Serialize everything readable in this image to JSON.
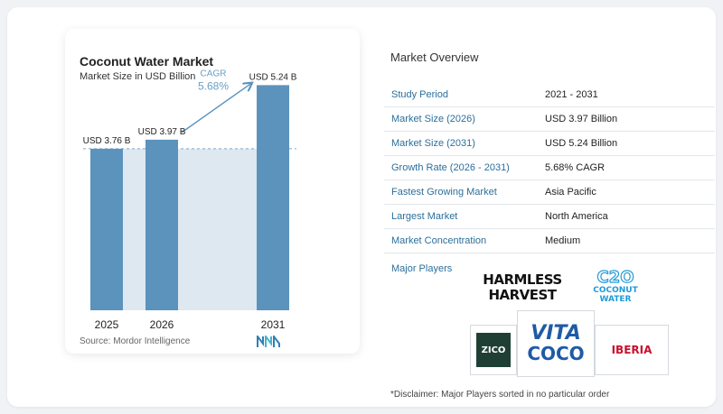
{
  "chart_data": {
    "type": "bar",
    "title": "Coconut Water Market",
    "subtitle": "Market Size in USD Billion",
    "categories": [
      "2025",
      "2026",
      "2031"
    ],
    "values": [
      3.76,
      3.97,
      5.24
    ],
    "data_labels": [
      "USD 3.76 B",
      "USD 3.97 B",
      "USD 5.24 B"
    ],
    "cagr_label": "CAGR",
    "cagr_value": "5.68%",
    "ylim": [
      0,
      5.5
    ],
    "grid": false,
    "legend": "none",
    "bar_color": "#5b93bd",
    "area_color": "#dde8f1"
  },
  "source": "Source:  Mordor Intelligence",
  "overview": {
    "title": "Market Overview",
    "rows": [
      {
        "label": "Study Period",
        "value": "2021 - 2031"
      },
      {
        "label": "Market Size (2026)",
        "value": "USD 3.97 Billion"
      },
      {
        "label": "Market Size (2031)",
        "value": "USD 5.24 Billion"
      },
      {
        "label": "Growth Rate (2026 - 2031)",
        "value": "5.68% CAGR"
      },
      {
        "label": "Fastest Growing Market",
        "value": "Asia Pacific"
      },
      {
        "label": "Largest Market",
        "value": "North America"
      },
      {
        "label": "Market Concentration",
        "value": "Medium"
      }
    ],
    "players_label": "Major Players",
    "players": [
      {
        "line1": "HARMLESS",
        "line2": "HARVEST"
      },
      {
        "line1": "C2O",
        "line2": "COCONUT",
        "line3": "WATER"
      },
      {
        "name": "ZICO"
      },
      {
        "line1": "VITA",
        "line2": "COCO"
      },
      {
        "name": "IBERIA"
      }
    ]
  },
  "disclaimer": "*Disclaimer: Major Players sorted in no particular order",
  "colors": {
    "accent": "#2b6f9b",
    "zico_bg": "#1f3f35",
    "vita_blue": "#1f5aa6",
    "iberia_red": "#c8102e"
  }
}
